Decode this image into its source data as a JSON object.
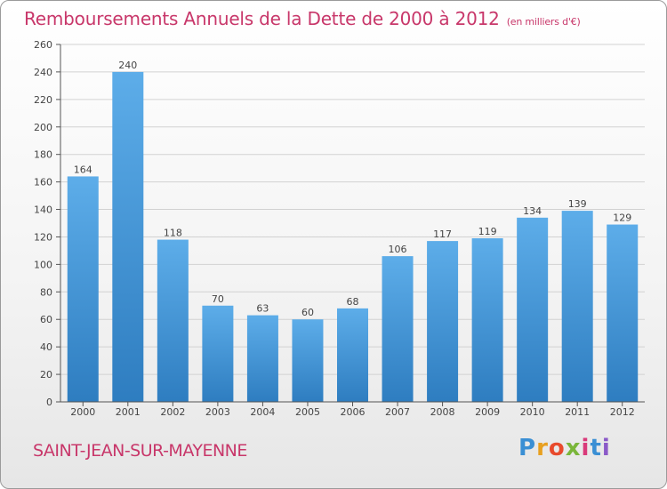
{
  "title": "Remboursements Annuels de la Dette de 2000 à 2012",
  "subtitle": "(en milliers d'€)",
  "commune": "SAINT-JEAN-SUR-MAYENNE",
  "logo": {
    "letters": [
      "P",
      "r",
      "o",
      "x",
      "i",
      "t",
      "i"
    ],
    "colors": [
      "#3a8fd4",
      "#e8a020",
      "#e84a2c",
      "#7ab63a",
      "#d93a7a",
      "#3a8fd4",
      "#8a5ac8"
    ]
  },
  "colors": {
    "bar_top": "#5dade9",
    "bar_bottom": "#2e7dc0",
    "title": "#c8376a"
  },
  "chart_data": {
    "type": "bar",
    "categories": [
      "2000",
      "2001",
      "2002",
      "2003",
      "2004",
      "2005",
      "2006",
      "2007",
      "2008",
      "2009",
      "2010",
      "2011",
      "2012"
    ],
    "values": [
      164,
      240,
      118,
      70,
      63,
      60,
      68,
      106,
      117,
      119,
      134,
      139,
      129
    ],
    "ylim": [
      0,
      260
    ],
    "yticks": [
      0,
      20,
      40,
      60,
      80,
      100,
      120,
      140,
      160,
      180,
      200,
      220,
      240,
      260
    ],
    "grid": true
  }
}
